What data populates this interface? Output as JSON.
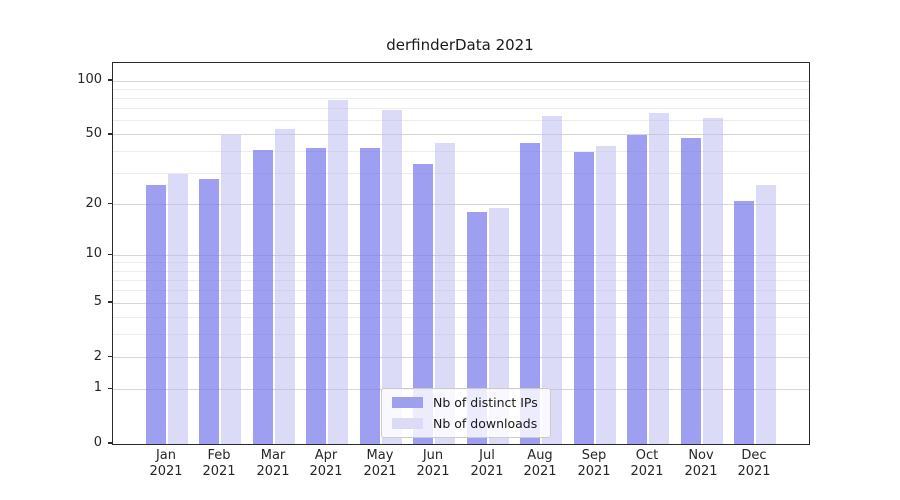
{
  "title": "derfinderData 2021",
  "legend": {
    "items": [
      {
        "label": "Nb of distinct IPs",
        "color": "#9f9ff0"
      },
      {
        "label": "Nb of downloads",
        "color": "#dbdbf8"
      }
    ],
    "position": "lower center"
  },
  "colors": {
    "grid_major": "#d6d6d6",
    "grid_minor": "#ececec",
    "axis": "#2b2b2b",
    "text": "#262626",
    "background": "#ffffff"
  },
  "chart_data": {
    "type": "bar",
    "title": "derfinderData 2021",
    "xlabel": "",
    "ylabel": "",
    "scale": "log1p",
    "grid": true,
    "legend_position": "lower center",
    "year": "2021",
    "categories": [
      "Jan",
      "Feb",
      "Mar",
      "Apr",
      "May",
      "Jun",
      "Jul",
      "Aug",
      "Sep",
      "Oct",
      "Nov",
      "Dec"
    ],
    "series": [
      {
        "name": "Nb of distinct IPs",
        "color": "rgba(118,118,236,0.7)",
        "legend_color": "#9f9ff0",
        "values": [
          26,
          28,
          41,
          42,
          42,
          34,
          18,
          45,
          40,
          50,
          48,
          21
        ]
      },
      {
        "name": "Nb of downloads",
        "color": "rgba(183,183,241,0.5)",
        "legend_color": "#dbdbf8",
        "values": [
          30,
          50,
          54,
          78,
          69,
          45,
          19,
          64,
          43,
          66,
          62,
          26
        ]
      }
    ],
    "yticks": [
      0,
      1,
      2,
      5,
      10,
      20,
      50,
      100
    ],
    "minor_gridlines": [
      3,
      4,
      6,
      7,
      8,
      9,
      30,
      40,
      60,
      70,
      80,
      90
    ],
    "ylim": [
      0,
      126
    ]
  }
}
